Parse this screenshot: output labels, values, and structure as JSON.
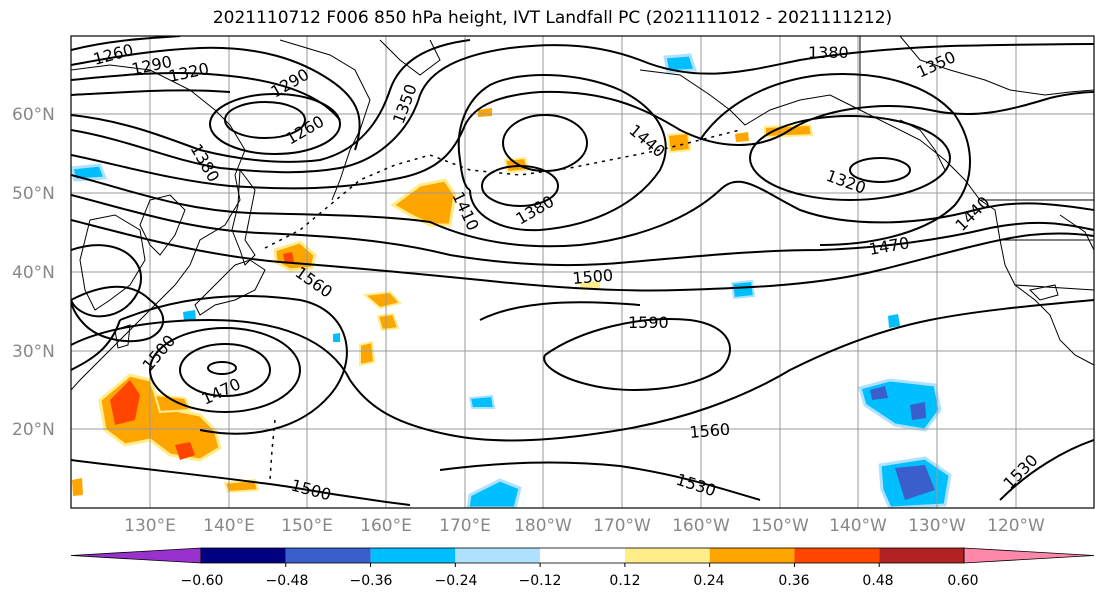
{
  "title": "2021110712 F006 850 hPa height, IVT Landfall PC (2021111012 - 2021111212)",
  "lat_labels": [
    "60°N",
    "50°N",
    "40°N",
    "30°N",
    "20°N"
  ],
  "lon_labels": [
    "130°E",
    "140°E",
    "150°E",
    "160°E",
    "170°E",
    "180°W",
    "170°W",
    "160°W",
    "150°W",
    "140°W",
    "130°W",
    "120°W"
  ],
  "contour_labels": [
    "1260",
    "1290",
    "1320",
    "1290",
    "1260",
    "1350",
    "1380",
    "1440",
    "1410",
    "1380",
    "1380",
    "1350",
    "1320",
    "1470",
    "1500",
    "1560",
    "1590",
    "1500",
    "1470",
    "1560",
    "1530",
    "1500",
    "1530",
    "1440"
  ],
  "colorbar": {
    "tick_labels": [
      "−0.60",
      "−0.48",
      "−0.36",
      "−0.24",
      "−0.12",
      "0.12",
      "0.24",
      "0.36",
      "0.48",
      "0.60"
    ],
    "colors": [
      "#9932cc",
      "#000080",
      "#3a5fcd",
      "#00bfff",
      "#b0e2ff",
      "#ffffff",
      "#ffec8b",
      "#ffa500",
      "#ff4500",
      "#b22222",
      "#ff88aa"
    ]
  },
  "colors": {
    "contour": "#000000",
    "coast": "#000000",
    "grid": "#999999"
  }
}
